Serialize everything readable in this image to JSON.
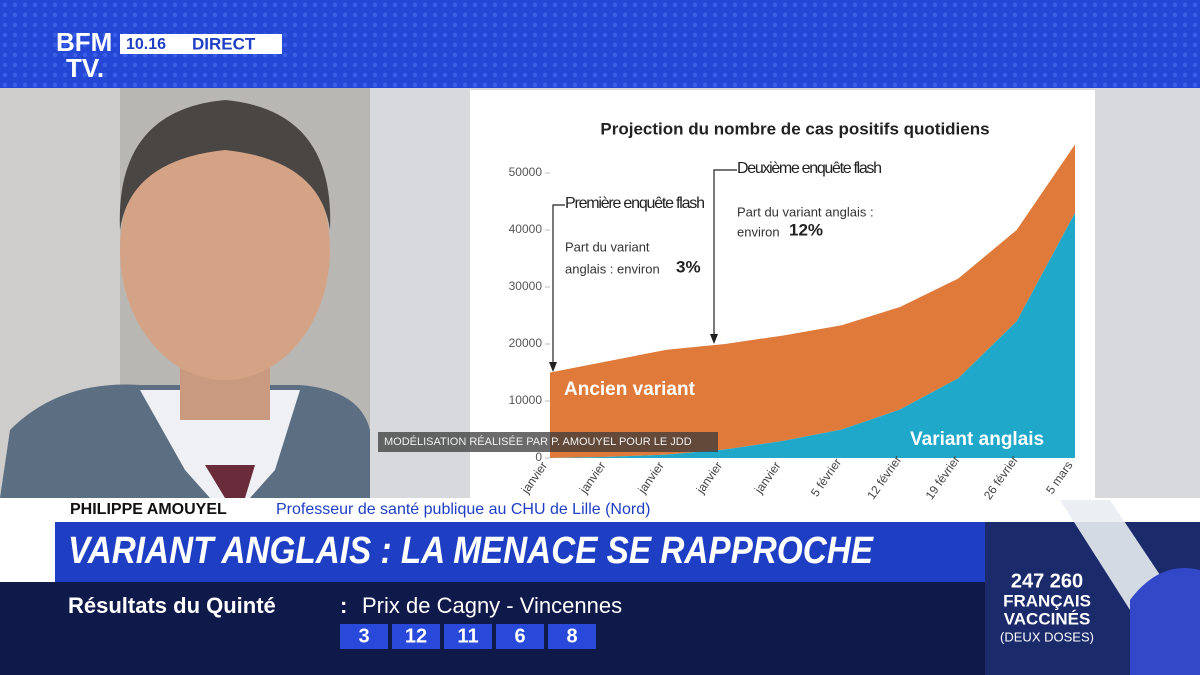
{
  "channel": {
    "logo_top": "BFM",
    "logo_bottom": "TV.",
    "time": "10.16",
    "status": "DIRECT"
  },
  "chart": {
    "type": "area",
    "title": "Projection du nombre de cas positifs quotidiens",
    "categories": [
      "janvier",
      "janvier",
      "janvier",
      "janvier",
      "janvier",
      "5 février",
      "12 février",
      "19 février",
      "26 février",
      "5 mars"
    ],
    "series": [
      {
        "name": "Variant anglais",
        "color": "#1fa8c9",
        "values": [
          0,
          200,
          600,
          1500,
          3000,
          5000,
          8500,
          14000,
          24000,
          43000
        ]
      },
      {
        "name": "Ancien variant",
        "color": "#e07a3a",
        "values": [
          15000,
          16800,
          18400,
          18500,
          18500,
          18300,
          18000,
          17500,
          16000,
          12000
        ]
      }
    ],
    "ylim": [
      0,
      55000
    ],
    "yticks": [
      0,
      10000,
      20000,
      30000,
      40000,
      50000
    ],
    "annotations": [
      {
        "title": "Première enquête flash",
        "line1": "Part du variant",
        "line2": "anglais : environ",
        "share": "3%"
      },
      {
        "title": "Deuxième enquête flash",
        "line1": "Part du variant anglais :",
        "line2": "environ",
        "share": "12%"
      }
    ],
    "caption": "MODÉLISATION RÉALISÉE PAR P. AMOUYEL POUR LE JDD"
  },
  "guest": {
    "name": "PHILIPPE AMOUYEL",
    "role": "Professeur de santé publique au CHU de Lille (Nord)"
  },
  "headline": "VARIANT ANGLAIS : LA MENACE SE RAPPROCHE",
  "ticker": {
    "label": "Résultats du Quinté",
    "separator": ":",
    "race": "Prix de Cagny - Vincennes",
    "numbers": [
      "3",
      "12",
      "11",
      "6",
      "8"
    ]
  },
  "counter": {
    "value": "247 260",
    "line1": "FRANÇAIS",
    "line2": "VACCINÉS",
    "line3": "(DEUX DOSES)"
  }
}
